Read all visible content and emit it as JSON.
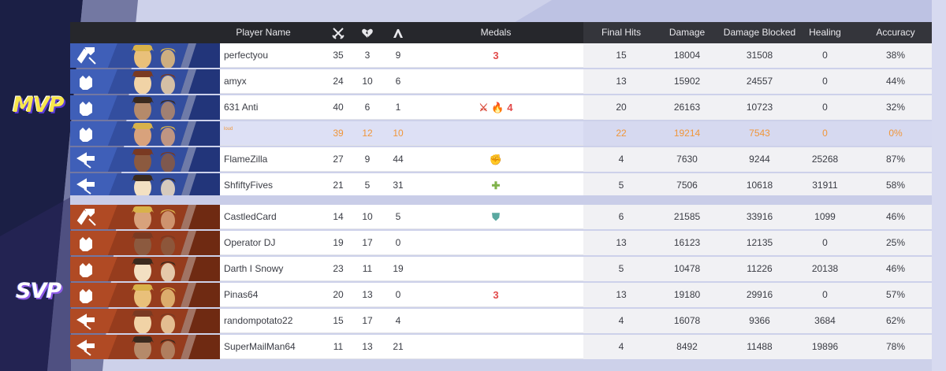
{
  "side_labels": {
    "mvp": "MVP",
    "svp": "SVP"
  },
  "header": {
    "player_name": "Player Name",
    "kills_icon": "crossed-swords-icon",
    "deaths_icon": "broken-heart-icon",
    "assists_icon": "handshake-icon",
    "medals": "Medals",
    "final_hits": "Final Hits",
    "damage": "Damage",
    "damage_blocked": "Damage Blocked",
    "healing": "Healing",
    "accuracy": "Accuracy"
  },
  "team_colors": {
    "allies": "#3f5fb8",
    "enemies": "#b04a24",
    "highlight_text": "#f0963a"
  },
  "allies": [
    {
      "name": "perfectyou",
      "kills": "35",
      "deaths": "3",
      "assists": "9",
      "medals": [
        "3"
      ],
      "final_hits": "15",
      "damage": "18004",
      "damage_blocked": "31508",
      "healing": "0",
      "accuracy": "38%",
      "role_icon": "vanguard-icon"
    },
    {
      "name": "amyx",
      "kills": "24",
      "deaths": "10",
      "assists": "6",
      "medals": [],
      "final_hits": "13",
      "damage": "15902",
      "damage_blocked": "24557",
      "healing": "0",
      "accuracy": "44%",
      "role_icon": "duelist-icon"
    },
    {
      "name": "631 Anti",
      "kills": "40",
      "deaths": "6",
      "assists": "1",
      "medals": [
        "⚔",
        "🔥",
        "4"
      ],
      "final_hits": "20",
      "damage": "26163",
      "damage_blocked": "10723",
      "healing": "0",
      "accuracy": "32%",
      "role_icon": "duelist-icon"
    },
    {
      "name": "loud",
      "kills": "39",
      "deaths": "12",
      "assists": "10",
      "medals": [],
      "final_hits": "22",
      "damage": "19214",
      "damage_blocked": "7543",
      "healing": "0",
      "accuracy": "0%",
      "role_icon": "duelist-icon",
      "highlight": true
    },
    {
      "name": "FlameZilla",
      "kills": "27",
      "deaths": "9",
      "assists": "44",
      "medals": [
        "✊"
      ],
      "final_hits": "4",
      "damage": "7630",
      "damage_blocked": "9244",
      "healing": "25268",
      "accuracy": "87%",
      "role_icon": "strategist-icon"
    },
    {
      "name": "ShfiftyFives",
      "kills": "21",
      "deaths": "5",
      "assists": "31",
      "medals": [
        "✚"
      ],
      "final_hits": "5",
      "damage": "7506",
      "damage_blocked": "10618",
      "healing": "31911",
      "accuracy": "58%",
      "role_icon": "strategist-icon"
    }
  ],
  "enemies": [
    {
      "name": "CastledCard",
      "kills": "14",
      "deaths": "10",
      "assists": "5",
      "medals": [
        "⛊"
      ],
      "final_hits": "6",
      "damage": "21585",
      "damage_blocked": "33916",
      "healing": "1099",
      "accuracy": "46%",
      "role_icon": "vanguard-icon"
    },
    {
      "name": "Operator DJ",
      "kills": "19",
      "deaths": "17",
      "assists": "0",
      "medals": [],
      "final_hits": "13",
      "damage": "16123",
      "damage_blocked": "12135",
      "healing": "0",
      "accuracy": "25%",
      "role_icon": "duelist-icon"
    },
    {
      "name": "Darth I Snowy",
      "kills": "23",
      "deaths": "11",
      "assists": "19",
      "medals": [],
      "final_hits": "5",
      "damage": "10478",
      "damage_blocked": "11226",
      "healing": "20138",
      "accuracy": "46%",
      "role_icon": "duelist-icon"
    },
    {
      "name": "Pinas64",
      "kills": "20",
      "deaths": "13",
      "assists": "0",
      "medals": [
        "3"
      ],
      "final_hits": "13",
      "damage": "19180",
      "damage_blocked": "29916",
      "healing": "0",
      "accuracy": "57%",
      "role_icon": "duelist-icon"
    },
    {
      "name": "randompotato22",
      "kills": "15",
      "deaths": "17",
      "assists": "4",
      "medals": [],
      "final_hits": "4",
      "damage": "16078",
      "damage_blocked": "9366",
      "healing": "3684",
      "accuracy": "62%",
      "role_icon": "strategist-icon"
    },
    {
      "name": "SuperMailMan64",
      "kills": "11",
      "deaths": "13",
      "assists": "21",
      "medals": [],
      "final_hits": "4",
      "damage": "8492",
      "damage_blocked": "11488",
      "healing": "19896",
      "accuracy": "78%",
      "role_icon": "strategist-icon"
    }
  ]
}
